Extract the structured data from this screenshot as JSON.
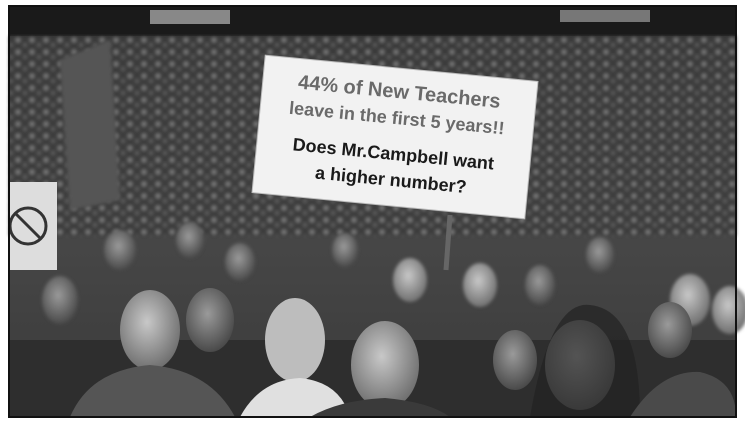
{
  "sign": {
    "lines": [
      "44% of New Teachers",
      "leave in the first 5 years!!",
      "Does Mr.Campbell want",
      "a higher number?"
    ]
  }
}
